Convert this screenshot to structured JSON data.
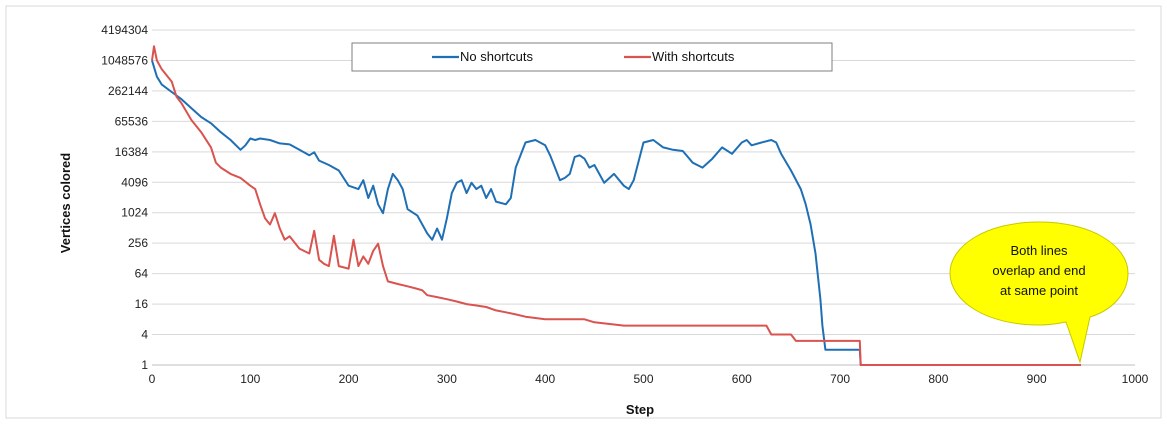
{
  "chart_data": {
    "type": "line",
    "title": "",
    "xlabel": "Step",
    "ylabel": "Vertices colored",
    "xlim": [
      0,
      1000
    ],
    "x_ticks": [
      "0",
      "100",
      "200",
      "300",
      "400",
      "500",
      "600",
      "700",
      "800",
      "900",
      "1000"
    ],
    "y_scale": "log2",
    "ylim": [
      1,
      4194304
    ],
    "y_ticks": [
      "1",
      "4",
      "16",
      "64",
      "256",
      "1024",
      "4096",
      "16384",
      "65536",
      "262144",
      "1048576",
      "4194304"
    ],
    "grid": "horizontal",
    "legend_position": "top-center",
    "colors": {
      "no_shortcuts": "#1f6fb5",
      "with_shortcuts": "#d9534f",
      "callout_fill": "#ffff00"
    },
    "series": [
      {
        "name": "No shortcuts",
        "points": [
          [
            0,
            1048576
          ],
          [
            5,
            500000
          ],
          [
            10,
            350000
          ],
          [
            20,
            250000
          ],
          [
            30,
            180000
          ],
          [
            40,
            120000
          ],
          [
            50,
            80000
          ],
          [
            60,
            60000
          ],
          [
            70,
            40000
          ],
          [
            80,
            28000
          ],
          [
            90,
            18000
          ],
          [
            95,
            22000
          ],
          [
            100,
            30000
          ],
          [
            105,
            28000
          ],
          [
            110,
            30000
          ],
          [
            120,
            28000
          ],
          [
            130,
            24000
          ],
          [
            140,
            23000
          ],
          [
            150,
            18000
          ],
          [
            160,
            14000
          ],
          [
            165,
            16000
          ],
          [
            170,
            11000
          ],
          [
            180,
            9000
          ],
          [
            190,
            7000
          ],
          [
            200,
            3500
          ],
          [
            210,
            3000
          ],
          [
            215,
            4500
          ],
          [
            220,
            2000
          ],
          [
            225,
            3500
          ],
          [
            230,
            1500
          ],
          [
            235,
            1000
          ],
          [
            240,
            3000
          ],
          [
            245,
            6000
          ],
          [
            250,
            4500
          ],
          [
            255,
            3000
          ],
          [
            260,
            1200
          ],
          [
            270,
            900
          ],
          [
            280,
            400
          ],
          [
            285,
            300
          ],
          [
            290,
            500
          ],
          [
            295,
            300
          ],
          [
            300,
            800
          ],
          [
            305,
            2500
          ],
          [
            310,
            4000
          ],
          [
            315,
            4500
          ],
          [
            320,
            2500
          ],
          [
            325,
            4000
          ],
          [
            330,
            3000
          ],
          [
            335,
            3500
          ],
          [
            340,
            2000
          ],
          [
            345,
            3000
          ],
          [
            350,
            1700
          ],
          [
            360,
            1500
          ],
          [
            365,
            2000
          ],
          [
            370,
            8000
          ],
          [
            380,
            25000
          ],
          [
            390,
            28000
          ],
          [
            400,
            22000
          ],
          [
            405,
            14000
          ],
          [
            410,
            8000
          ],
          [
            415,
            4500
          ],
          [
            420,
            5000
          ],
          [
            425,
            6000
          ],
          [
            430,
            13000
          ],
          [
            435,
            14000
          ],
          [
            440,
            12000
          ],
          [
            445,
            8000
          ],
          [
            450,
            9000
          ],
          [
            455,
            6000
          ],
          [
            460,
            4000
          ],
          [
            470,
            6000
          ],
          [
            480,
            3500
          ],
          [
            485,
            3000
          ],
          [
            490,
            4500
          ],
          [
            500,
            25000
          ],
          [
            510,
            28000
          ],
          [
            520,
            20000
          ],
          [
            530,
            18000
          ],
          [
            540,
            17000
          ],
          [
            550,
            10000
          ],
          [
            560,
            8000
          ],
          [
            570,
            12000
          ],
          [
            580,
            20000
          ],
          [
            590,
            15000
          ],
          [
            600,
            25000
          ],
          [
            605,
            28000
          ],
          [
            610,
            22000
          ],
          [
            620,
            25000
          ],
          [
            630,
            28000
          ],
          [
            635,
            25000
          ],
          [
            640,
            15000
          ],
          [
            650,
            7000
          ],
          [
            660,
            3000
          ],
          [
            665,
            1500
          ],
          [
            670,
            600
          ],
          [
            675,
            160
          ],
          [
            680,
            20
          ],
          [
            682,
            6
          ],
          [
            685,
            2
          ],
          [
            700,
            2
          ],
          [
            720,
            2
          ],
          [
            721,
            1
          ],
          [
            945,
            1
          ]
        ]
      },
      {
        "name": "With shortcuts",
        "points": [
          [
            0,
            1048576
          ],
          [
            2,
            2000000
          ],
          [
            5,
            1048576
          ],
          [
            10,
            700000
          ],
          [
            20,
            400000
          ],
          [
            25,
            200000
          ],
          [
            30,
            150000
          ],
          [
            40,
            70000
          ],
          [
            50,
            40000
          ],
          [
            60,
            20000
          ],
          [
            65,
            10000
          ],
          [
            70,
            8000
          ],
          [
            80,
            6000
          ],
          [
            90,
            5000
          ],
          [
            100,
            3500
          ],
          [
            105,
            3000
          ],
          [
            110,
            1500
          ],
          [
            115,
            800
          ],
          [
            120,
            600
          ],
          [
            125,
            1000
          ],
          [
            130,
            500
          ],
          [
            135,
            300
          ],
          [
            140,
            350
          ],
          [
            150,
            200
          ],
          [
            160,
            160
          ],
          [
            165,
            450
          ],
          [
            170,
            120
          ],
          [
            175,
            100
          ],
          [
            180,
            90
          ],
          [
            185,
            360
          ],
          [
            190,
            90
          ],
          [
            195,
            85
          ],
          [
            200,
            80
          ],
          [
            205,
            300
          ],
          [
            210,
            90
          ],
          [
            215,
            140
          ],
          [
            220,
            100
          ],
          [
            225,
            180
          ],
          [
            230,
            250
          ],
          [
            235,
            90
          ],
          [
            240,
            45
          ],
          [
            250,
            40
          ],
          [
            260,
            36
          ],
          [
            270,
            32
          ],
          [
            275,
            30
          ],
          [
            280,
            24
          ],
          [
            290,
            22
          ],
          [
            300,
            20
          ],
          [
            310,
            18
          ],
          [
            320,
            16
          ],
          [
            330,
            15
          ],
          [
            340,
            14
          ],
          [
            350,
            12
          ],
          [
            360,
            11
          ],
          [
            370,
            10
          ],
          [
            380,
            9
          ],
          [
            400,
            8
          ],
          [
            440,
            8
          ],
          [
            450,
            7
          ],
          [
            480,
            6
          ],
          [
            500,
            6
          ],
          [
            600,
            6
          ],
          [
            625,
            6
          ],
          [
            630,
            4
          ],
          [
            650,
            4
          ],
          [
            655,
            3
          ],
          [
            680,
            3
          ],
          [
            720,
            3
          ],
          [
            721,
            1
          ],
          [
            945,
            1
          ]
        ]
      }
    ],
    "annotation": {
      "lines": [
        "Both lines",
        "overlap and end",
        "at same point"
      ],
      "x": 945,
      "y": 1
    }
  }
}
